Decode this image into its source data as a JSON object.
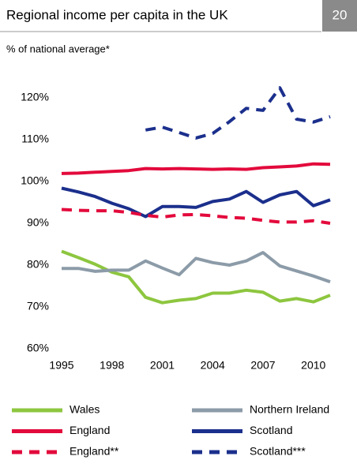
{
  "chart_data": {
    "type": "line",
    "title": "Regional income per capita in the UK",
    "page_number": "20",
    "subtitle": "% of national average*",
    "x": [
      1995,
      1996,
      1997,
      1998,
      1999,
      2000,
      2001,
      2002,
      2003,
      2004,
      2005,
      2006,
      2007,
      2008,
      2009,
      2010,
      2011
    ],
    "xlim": [
      1995,
      2011
    ],
    "xticks": [
      1995,
      1998,
      2001,
      2004,
      2007,
      2010
    ],
    "ylim": [
      60,
      125
    ],
    "yticks": [
      {
        "value": 60,
        "label": "60%"
      },
      {
        "value": 70,
        "label": "70%"
      },
      {
        "value": 80,
        "label": "80%"
      },
      {
        "value": 90,
        "label": "90%"
      },
      {
        "value": 100,
        "label": "100%"
      },
      {
        "value": 110,
        "label": "110%"
      },
      {
        "value": 120,
        "label": "120%"
      }
    ],
    "series": [
      {
        "name": "Wales",
        "color": "#8dc63f",
        "dash": false,
        "values": [
          83.3,
          81.8,
          80.2,
          78.3,
          77.2,
          72.3,
          71.0,
          71.6,
          72.0,
          73.3,
          73.3,
          74.0,
          73.5,
          71.4,
          72.0,
          71.2,
          72.8
        ]
      },
      {
        "name": "Northern Ireland",
        "color": "#8c9ba8",
        "dash": false,
        "values": [
          79.2,
          79.2,
          78.5,
          78.8,
          78.8,
          81.0,
          79.3,
          77.7,
          81.6,
          80.6,
          80.0,
          81.0,
          83.0,
          79.8,
          78.6,
          77.4,
          76.0
        ]
      },
      {
        "name": "England",
        "color": "#e30a3c",
        "dash": false,
        "values": [
          101.9,
          102.0,
          102.2,
          102.4,
          102.6,
          103.1,
          103.0,
          103.1,
          103.0,
          102.9,
          103.0,
          102.9,
          103.3,
          103.5,
          103.7,
          104.2,
          104.1
        ]
      },
      {
        "name": "Scotland",
        "color": "#1b2f8c",
        "dash": false,
        "values": [
          98.4,
          97.5,
          96.4,
          94.8,
          93.5,
          91.6,
          94.0,
          94.0,
          93.8,
          95.2,
          95.8,
          97.6,
          95.0,
          96.8,
          97.6,
          94.2,
          95.6
        ]
      },
      {
        "name": "England**",
        "color": "#e30a3c",
        "dash": true,
        "values": [
          93.3,
          93.1,
          93.0,
          93.0,
          92.6,
          91.9,
          91.5,
          92.0,
          92.1,
          91.8,
          91.4,
          91.2,
          90.7,
          90.3,
          90.3,
          90.6,
          90.0
        ]
      },
      {
        "name": "Scotland***",
        "color": "#1b2f8c",
        "dash": true,
        "values": [
          null,
          null,
          null,
          null,
          null,
          112.3,
          113.0,
          111.7,
          110.4,
          111.5,
          114.3,
          117.5,
          117.0,
          122.4,
          114.9,
          114.2,
          115.5
        ]
      }
    ]
  }
}
